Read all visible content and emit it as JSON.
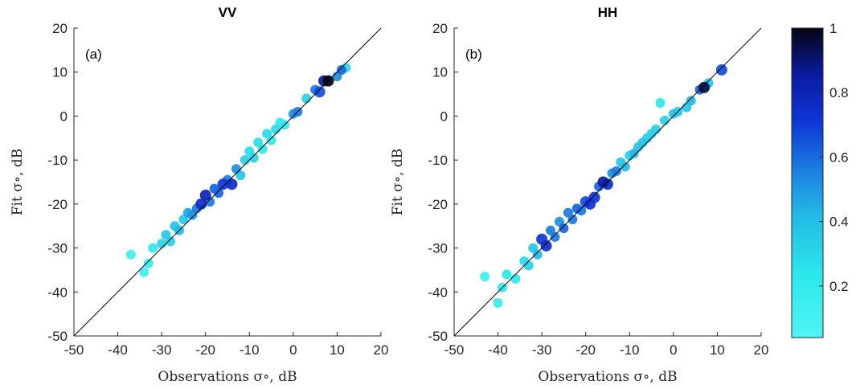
{
  "chart_data": [
    {
      "type": "scatter",
      "title": "VV",
      "panel_label": "(a)",
      "xlabel": "Observations σ∘, dB",
      "ylabel": "Fit σ∘, dB",
      "xlim": [
        -50,
        20
      ],
      "ylim": [
        -50,
        20
      ],
      "xticks": [
        "-50",
        "-40",
        "-30",
        "-20",
        "-10",
        "0",
        "10",
        "20"
      ],
      "yticks": [
        "-50",
        "-40",
        "-30",
        "-20",
        "-10",
        "0",
        "10",
        "20"
      ],
      "reference_line": "y = x",
      "color_by": "point density (0–1)",
      "points": [
        [
          -37,
          -31.5,
          0.1
        ],
        [
          -34,
          -35.5,
          0.1
        ],
        [
          -33,
          -33.5,
          0.15
        ],
        [
          -32,
          -30,
          0.2
        ],
        [
          -30,
          -29,
          0.3
        ],
        [
          -29,
          -27,
          0.35
        ],
        [
          -28,
          -28.5,
          0.3
        ],
        [
          -27,
          -25,
          0.35
        ],
        [
          -26,
          -26,
          0.4
        ],
        [
          -25,
          -23.5,
          0.35
        ],
        [
          -24,
          -22,
          0.45
        ],
        [
          -23,
          -22.5,
          0.5
        ],
        [
          -22,
          -21,
          0.55
        ],
        [
          -21,
          -20,
          0.75
        ],
        [
          -20,
          -18,
          0.8
        ],
        [
          -19,
          -19.5,
          0.55
        ],
        [
          -18,
          -16.5,
          0.6
        ],
        [
          -17,
          -17.5,
          0.6
        ],
        [
          -16,
          -15.5,
          0.7
        ],
        [
          -15,
          -14.5,
          0.55
        ],
        [
          -14,
          -15.5,
          0.75
        ],
        [
          -13,
          -12,
          0.5
        ],
        [
          -12,
          -13.5,
          0.35
        ],
        [
          -11,
          -10,
          0.3
        ],
        [
          -10,
          -8,
          0.25
        ],
        [
          -9,
          -9.5,
          0.3
        ],
        [
          -8,
          -6,
          0.25
        ],
        [
          -7,
          -7.5,
          0.2
        ],
        [
          -6,
          -4,
          0.25
        ],
        [
          -5,
          -5.5,
          0.2
        ],
        [
          -4,
          -3,
          0.25
        ],
        [
          -3,
          -1.5,
          0.2
        ],
        [
          -2,
          -2,
          0.2
        ],
        [
          0,
          0.5,
          0.5
        ],
        [
          1,
          1,
          0.55
        ],
        [
          3,
          4,
          0.3
        ],
        [
          5,
          6,
          0.55
        ],
        [
          6,
          5.5,
          0.65
        ],
        [
          7,
          8,
          0.85
        ],
        [
          8,
          8,
          1.0
        ],
        [
          10,
          9,
          0.5
        ],
        [
          11,
          10.5,
          0.6
        ],
        [
          12,
          11,
          0.25
        ]
      ]
    },
    {
      "type": "scatter",
      "title": "HH",
      "panel_label": "(b)",
      "xlabel": "Observations σ∘, dB",
      "ylabel": "Fit σ∘, dB",
      "xlim": [
        -50,
        20
      ],
      "ylim": [
        -50,
        20
      ],
      "xticks": [
        "-50",
        "-40",
        "-30",
        "-20",
        "-10",
        "0",
        "10",
        "20"
      ],
      "yticks": [
        "-50",
        "-40",
        "-30",
        "-20",
        "-10",
        "0",
        "10",
        "20"
      ],
      "reference_line": "y = x",
      "color_by": "point density (0–1)",
      "points": [
        [
          -43,
          -36.5,
          0.1
        ],
        [
          -40,
          -42.5,
          0.15
        ],
        [
          -39,
          -39,
          0.2
        ],
        [
          -38,
          -36,
          0.2
        ],
        [
          -36,
          -37,
          0.2
        ],
        [
          -34,
          -33,
          0.25
        ],
        [
          -33,
          -34,
          0.3
        ],
        [
          -32,
          -30,
          0.35
        ],
        [
          -31,
          -31.5,
          0.4
        ],
        [
          -30,
          -28,
          0.7
        ],
        [
          -29,
          -29.5,
          0.75
        ],
        [
          -28,
          -26,
          0.55
        ],
        [
          -27,
          -27.5,
          0.55
        ],
        [
          -26,
          -24,
          0.5
        ],
        [
          -25,
          -25.5,
          0.6
        ],
        [
          -24,
          -22,
          0.55
        ],
        [
          -23,
          -23.5,
          0.55
        ],
        [
          -22,
          -21,
          0.6
        ],
        [
          -21,
          -21.5,
          0.55
        ],
        [
          -20,
          -19.5,
          0.65
        ],
        [
          -19,
          -20,
          0.7
        ],
        [
          -18,
          -18.5,
          0.7
        ],
        [
          -17,
          -16,
          0.6
        ],
        [
          -16,
          -15,
          0.85
        ],
        [
          -15,
          -15.5,
          0.75
        ],
        [
          -14,
          -13,
          0.5
        ],
        [
          -13,
          -12.5,
          0.55
        ],
        [
          -12,
          -10.5,
          0.35
        ],
        [
          -11,
          -11.5,
          0.4
        ],
        [
          -10,
          -9,
          0.3
        ],
        [
          -9,
          -8.5,
          0.4
        ],
        [
          -8,
          -7,
          0.35
        ],
        [
          -7,
          -6,
          0.35
        ],
        [
          -6,
          -5,
          0.3
        ],
        [
          -5,
          -4,
          0.3
        ],
        [
          -4,
          -3,
          0.3
        ],
        [
          -3,
          3,
          0.2
        ],
        [
          -2,
          -1,
          0.3
        ],
        [
          0,
          0.5,
          0.35
        ],
        [
          1,
          1,
          0.35
        ],
        [
          3,
          2,
          0.35
        ],
        [
          4,
          3.5,
          0.4
        ],
        [
          6,
          6,
          0.6
        ],
        [
          7,
          6.5,
          0.95
        ],
        [
          8,
          7.5,
          0.35
        ],
        [
          11,
          10.5,
          0.65
        ]
      ]
    }
  ],
  "colorbar": {
    "range": [
      0.04,
      1
    ],
    "ticks": [
      "0.2",
      "0.4",
      "0.6",
      "0.8",
      "1"
    ],
    "tick_values": [
      0.2,
      0.4,
      0.6,
      0.8,
      1.0
    ],
    "colormap": [
      [
        0.0,
        "#4ff5f5"
      ],
      [
        0.2,
        "#2ce8ea"
      ],
      [
        0.4,
        "#23b8e6"
      ],
      [
        0.55,
        "#1a7bdf"
      ],
      [
        0.7,
        "#0f35d6"
      ],
      [
        0.85,
        "#0a1aa0"
      ],
      [
        1.0,
        "#050510"
      ]
    ]
  }
}
